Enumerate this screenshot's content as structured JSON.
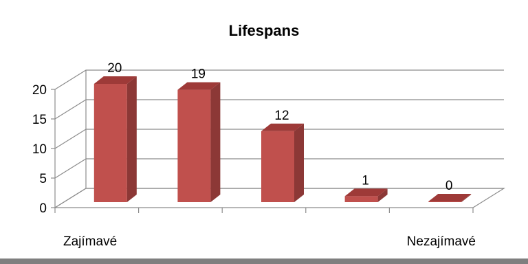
{
  "chart_data": {
    "type": "bar",
    "title": "Lifespans",
    "categories": [
      "Zajímavé",
      "",
      "",
      "",
      "Nezajímavé"
    ],
    "values": [
      20,
      19,
      12,
      1,
      0
    ],
    "yticks": [
      0,
      5,
      10,
      15,
      20
    ],
    "ylim": [
      0,
      20
    ],
    "grid": true,
    "three_d": true,
    "bar_color": "#c0504d",
    "bar_side_color": "#8c3836",
    "bar_top_color": "#9e3a38",
    "legend": "none"
  }
}
